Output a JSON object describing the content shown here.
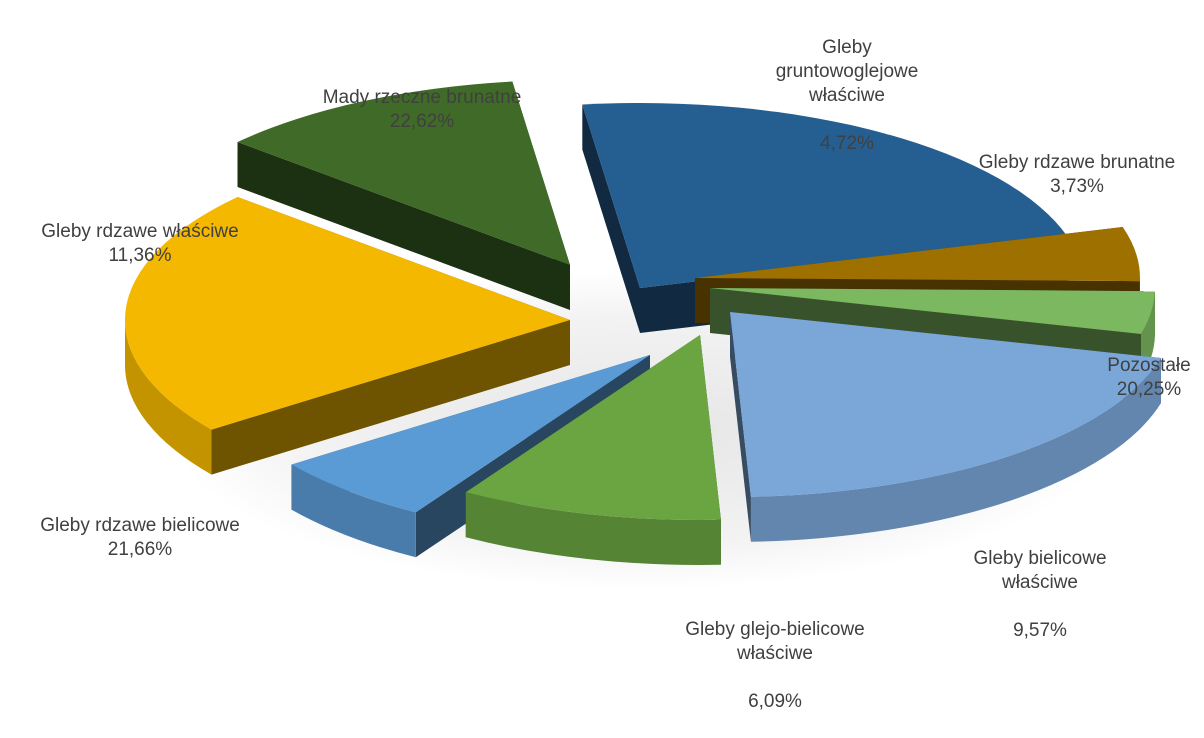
{
  "chart_data": {
    "type": "pie",
    "style": "3d-exploded",
    "title": "",
    "slices": [
      {
        "label": "Mady rzeczne brunatne",
        "value": 22.62,
        "value_label": "22,62%",
        "color": "#255E91"
      },
      {
        "label": "Gleby gruntowoglejowe właściwe",
        "value": 4.72,
        "value_label": "4,72%",
        "color": "#9E7000"
      },
      {
        "label": "Gleby rdzawe brunatne",
        "value": 3.73,
        "value_label": "3,73%",
        "color": "#7CB860"
      },
      {
        "label": "Pozostałe",
        "value": 20.25,
        "value_label": "20,25%",
        "color": "#7BA7D8"
      },
      {
        "label": "Gleby bielicowe właściwe",
        "value": 9.57,
        "value_label": "9,57%",
        "color": "#6BA542"
      },
      {
        "label": "Gleby glejo-bielicowe właściwe",
        "value": 6.09,
        "value_label": "6,09%",
        "color": "#5B9BD5"
      },
      {
        "label": "Gleby rdzawe bielicowe",
        "value": 21.66,
        "value_label": "21,66%",
        "color": "#F5B800"
      },
      {
        "label": "Gleby rdzawe właściwe",
        "value": 11.36,
        "value_label": "11,36%",
        "color": "#3F6A28"
      }
    ],
    "legend": "none"
  }
}
